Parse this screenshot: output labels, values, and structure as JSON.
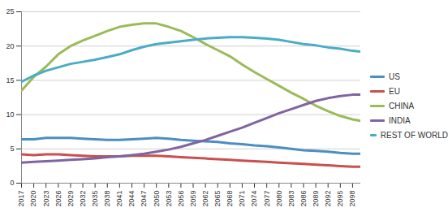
{
  "chart_data": {
    "type": "line",
    "x": [
      2017,
      2020,
      2023,
      2026,
      2029,
      2032,
      2035,
      2038,
      2041,
      2044,
      2047,
      2050,
      2053,
      2056,
      2059,
      2062,
      2065,
      2068,
      2071,
      2074,
      2077,
      2080,
      2083,
      2086,
      2089,
      2092,
      2095,
      2098,
      2100
    ],
    "series": [
      {
        "name": "US",
        "color": "#4a8fc4",
        "values": [
          6.4,
          6.4,
          6.6,
          6.6,
          6.6,
          6.5,
          6.4,
          6.3,
          6.3,
          6.4,
          6.5,
          6.6,
          6.5,
          6.3,
          6.2,
          6.1,
          6.0,
          5.8,
          5.7,
          5.5,
          5.4,
          5.2,
          5.0,
          4.8,
          4.7,
          4.6,
          4.4,
          4.3,
          4.3
        ]
      },
      {
        "name": "EU",
        "color": "#c9504d",
        "values": [
          4.2,
          4.1,
          4.2,
          4.2,
          4.1,
          4.0,
          3.9,
          3.9,
          3.9,
          4.0,
          4.0,
          4.0,
          3.9,
          3.8,
          3.7,
          3.6,
          3.5,
          3.4,
          3.3,
          3.2,
          3.1,
          3.0,
          2.9,
          2.8,
          2.7,
          2.6,
          2.5,
          2.4,
          2.4
        ]
      },
      {
        "name": "CHINA",
        "color": "#9bbb59",
        "values": [
          13.5,
          15.5,
          17,
          18.8,
          20,
          20.8,
          21.5,
          22.2,
          22.8,
          23.1,
          23.3,
          23.3,
          22.8,
          22.2,
          21.3,
          20.3,
          19.4,
          18.5,
          17.3,
          16.2,
          15.2,
          14.2,
          13.2,
          12.3,
          11.3,
          10.5,
          9.8,
          9.3,
          9.1
        ]
      },
      {
        "name": "INDIA",
        "color": "#8064a2",
        "values": [
          3.0,
          3.1,
          3.2,
          3.3,
          3.4,
          3.5,
          3.6,
          3.8,
          3.9,
          4.1,
          4.3,
          4.6,
          4.9,
          5.3,
          5.8,
          6.3,
          6.9,
          7.5,
          8.1,
          8.8,
          9.5,
          10.2,
          10.8,
          11.4,
          12.0,
          12.4,
          12.7,
          12.9,
          12.9
        ]
      },
      {
        "name": "REST OF WORLD",
        "color": "#4bacc6",
        "values": [
          14.8,
          15.7,
          16.4,
          16.9,
          17.4,
          17.7,
          18,
          18.4,
          18.8,
          19.4,
          19.9,
          20.3,
          20.5,
          20.7,
          20.9,
          21.1,
          21.2,
          21.3,
          21.3,
          21.2,
          21.1,
          20.9,
          20.6,
          20.3,
          20.1,
          19.8,
          19.6,
          19.3,
          19.2
        ]
      }
    ],
    "xlim": [
      2017,
      2100
    ],
    "xticks": [
      2017,
      2020,
      2023,
      2026,
      2029,
      2032,
      2035,
      2038,
      2041,
      2044,
      2047,
      2050,
      2053,
      2056,
      2059,
      2062,
      2065,
      2068,
      2071,
      2074,
      2077,
      2080,
      2083,
      2086,
      2089,
      2092,
      2095,
      2098
    ],
    "ylim": [
      0,
      25
    ],
    "yticks": [
      0,
      5,
      10,
      15,
      20,
      25
    ],
    "grid": true,
    "legend": "right"
  }
}
